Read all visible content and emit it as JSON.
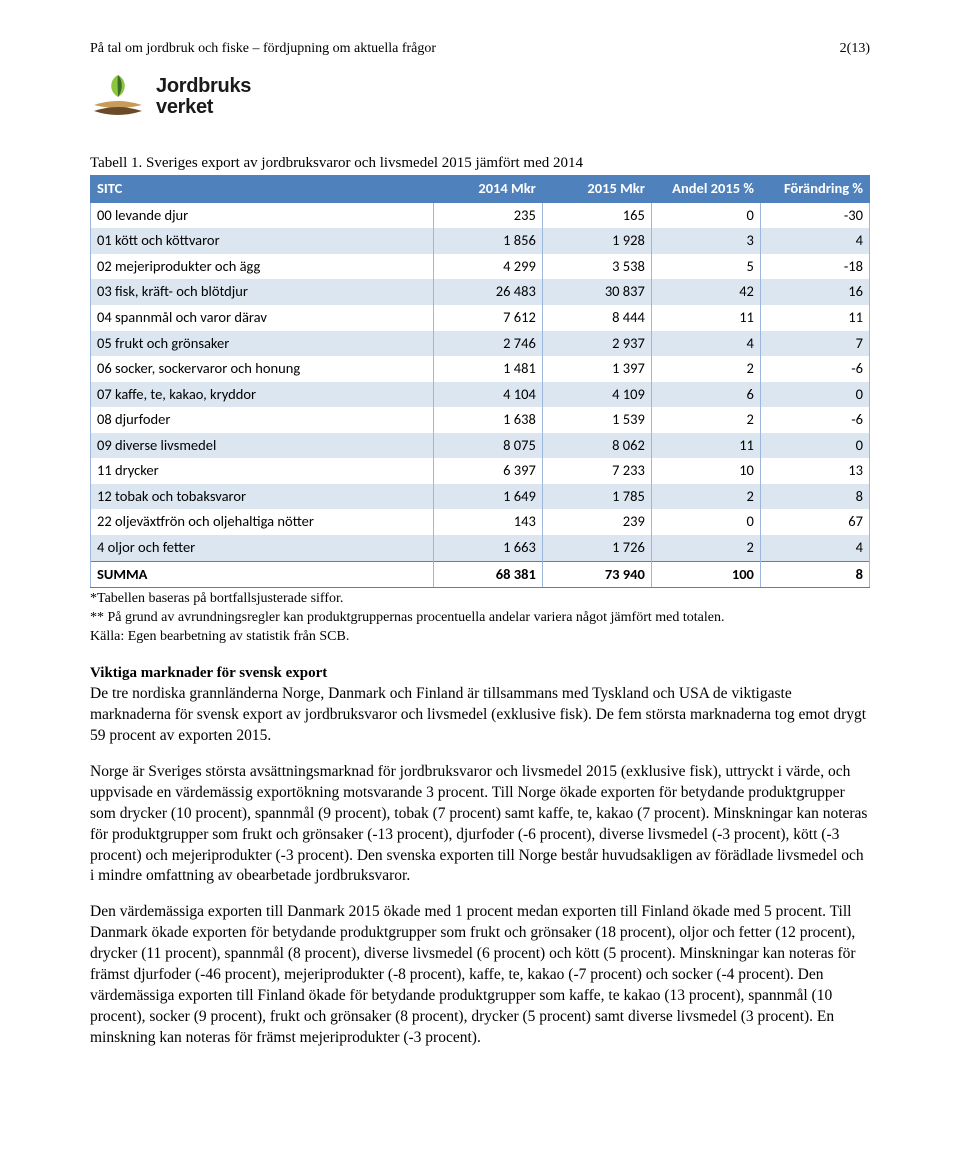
{
  "header": {
    "running_title": "På tal om jordbruk och fiske – fördjupning om aktuella frågor",
    "page_no": "2(13)"
  },
  "logo": {
    "brand_line1": "Jordbruks",
    "brand_line2": "verket",
    "colors": {
      "leaf_light": "#8cc63f",
      "leaf_dark": "#3c6e26",
      "wave_brown": "#6b4a2a",
      "wave_tan": "#c79b5a"
    }
  },
  "table": {
    "caption": "Tabell 1. Sveriges export av jordbruksvaror och livsmedel 2015 jämfört med 2014",
    "header_bg": "#4f81bd",
    "header_fg": "#ffffff",
    "row_alt_bg": "#dce6f1",
    "border_color": "#9cb7db",
    "columns": [
      "SITC",
      "2014 Mkr",
      "2015 Mkr",
      "Andel 2015 %",
      "Förändring %"
    ],
    "rows": [
      [
        "00 levande djur",
        "235",
        "165",
        "0",
        "-30"
      ],
      [
        "01 kött och köttvaror",
        "1 856",
        "1 928",
        "3",
        "4"
      ],
      [
        "02 mejeriprodukter och ägg",
        "4 299",
        "3 538",
        "5",
        "-18"
      ],
      [
        "03 fisk, kräft- och blötdjur",
        "26 483",
        "30 837",
        "42",
        "16"
      ],
      [
        "04 spannmål och varor därav",
        "7 612",
        "8 444",
        "11",
        "11"
      ],
      [
        "05 frukt och grönsaker",
        "2 746",
        "2 937",
        "4",
        "7"
      ],
      [
        "06 socker, sockervaror och honung",
        "1 481",
        "1 397",
        "2",
        "-6"
      ],
      [
        "07 kaffe, te, kakao, kryddor",
        "4 104",
        "4 109",
        "6",
        "0"
      ],
      [
        "08 djurfoder",
        "1 638",
        "1 539",
        "2",
        "-6"
      ],
      [
        "09 diverse livsmedel",
        "8 075",
        "8 062",
        "11",
        "0"
      ],
      [
        "11 drycker",
        "6 397",
        "7 233",
        "10",
        "13"
      ],
      [
        "12 tobak och tobaksvaror",
        "1 649",
        "1 785",
        "2",
        "8"
      ],
      [
        "22 oljeväxtfrön och oljehaltiga nötter",
        "143",
        "239",
        "0",
        "67"
      ],
      [
        "4 oljor och fetter",
        "1 663",
        "1 726",
        "2",
        "4"
      ]
    ],
    "sum_row": [
      "SUMMA",
      "68 381",
      "73 940",
      "100",
      "8"
    ]
  },
  "footnotes": {
    "l1": "*Tabellen baseras på bortfallsjusterade siffor.",
    "l2": "** På grund av avrundningsregler kan produktgruppernas procentuella andelar variera något jämfört med totalen.",
    "l3": "Källa: Egen bearbetning av statistik från SCB."
  },
  "section_heading": "Viktiga marknader för svensk export",
  "para1": "De tre nordiska grannländerna Norge, Danmark och Finland är tillsammans med Tyskland och USA de viktigaste marknaderna för svensk export av jordbruksvaror och livsmedel (exklusive fisk). De fem största marknaderna tog emot drygt 59 procent av exporten 2015.",
  "para2": "Norge är Sveriges största avsättningsmarknad för jordbruksvaror och livsmedel 2015 (exklusive fisk), uttryckt i värde, och uppvisade en värdemässig exportökning motsvarande 3 procent. Till Norge ökade exporten för betydande produktgrupper som drycker (10 procent), spannmål (9 procent), tobak (7 procent) samt kaffe, te, kakao (7 procent). Minskningar kan noteras för produktgrupper som frukt och grönsaker (-13 procent), djurfoder (-6 procent), diverse livsmedel (-3 procent), kött (-3 procent) och mejeriprodukter (-3 procent). Den svenska exporten till Norge består huvudsakligen av förädlade livsmedel och i mindre omfattning av obearbetade jordbruksvaror.",
  "para3": "Den värdemässiga exporten till Danmark 2015 ökade med 1 procent medan exporten till Finland ökade med 5 procent. Till Danmark ökade exporten för betydande produktgrupper som frukt och grönsaker (18 procent), oljor och fetter (12 procent), drycker (11 procent), spannmål (8 procent), diverse livsmedel (6 procent) och kött (5 procent). Minskningar kan noteras för främst djurfoder (-46 procent), mejeriprodukter (-8 procent), kaffe, te, kakao (-7 procent) och socker (-4 procent). Den värdemässiga exporten till Finland ökade för betydande produktgrupper som kaffe, te kakao (13 procent), spannmål (10 procent), socker (9 procent), frukt och grönsaker (8 procent), drycker (5 procent) samt diverse livsmedel (3 procent). En minskning kan noteras för främst mejeriprodukter (-3 procent)."
}
